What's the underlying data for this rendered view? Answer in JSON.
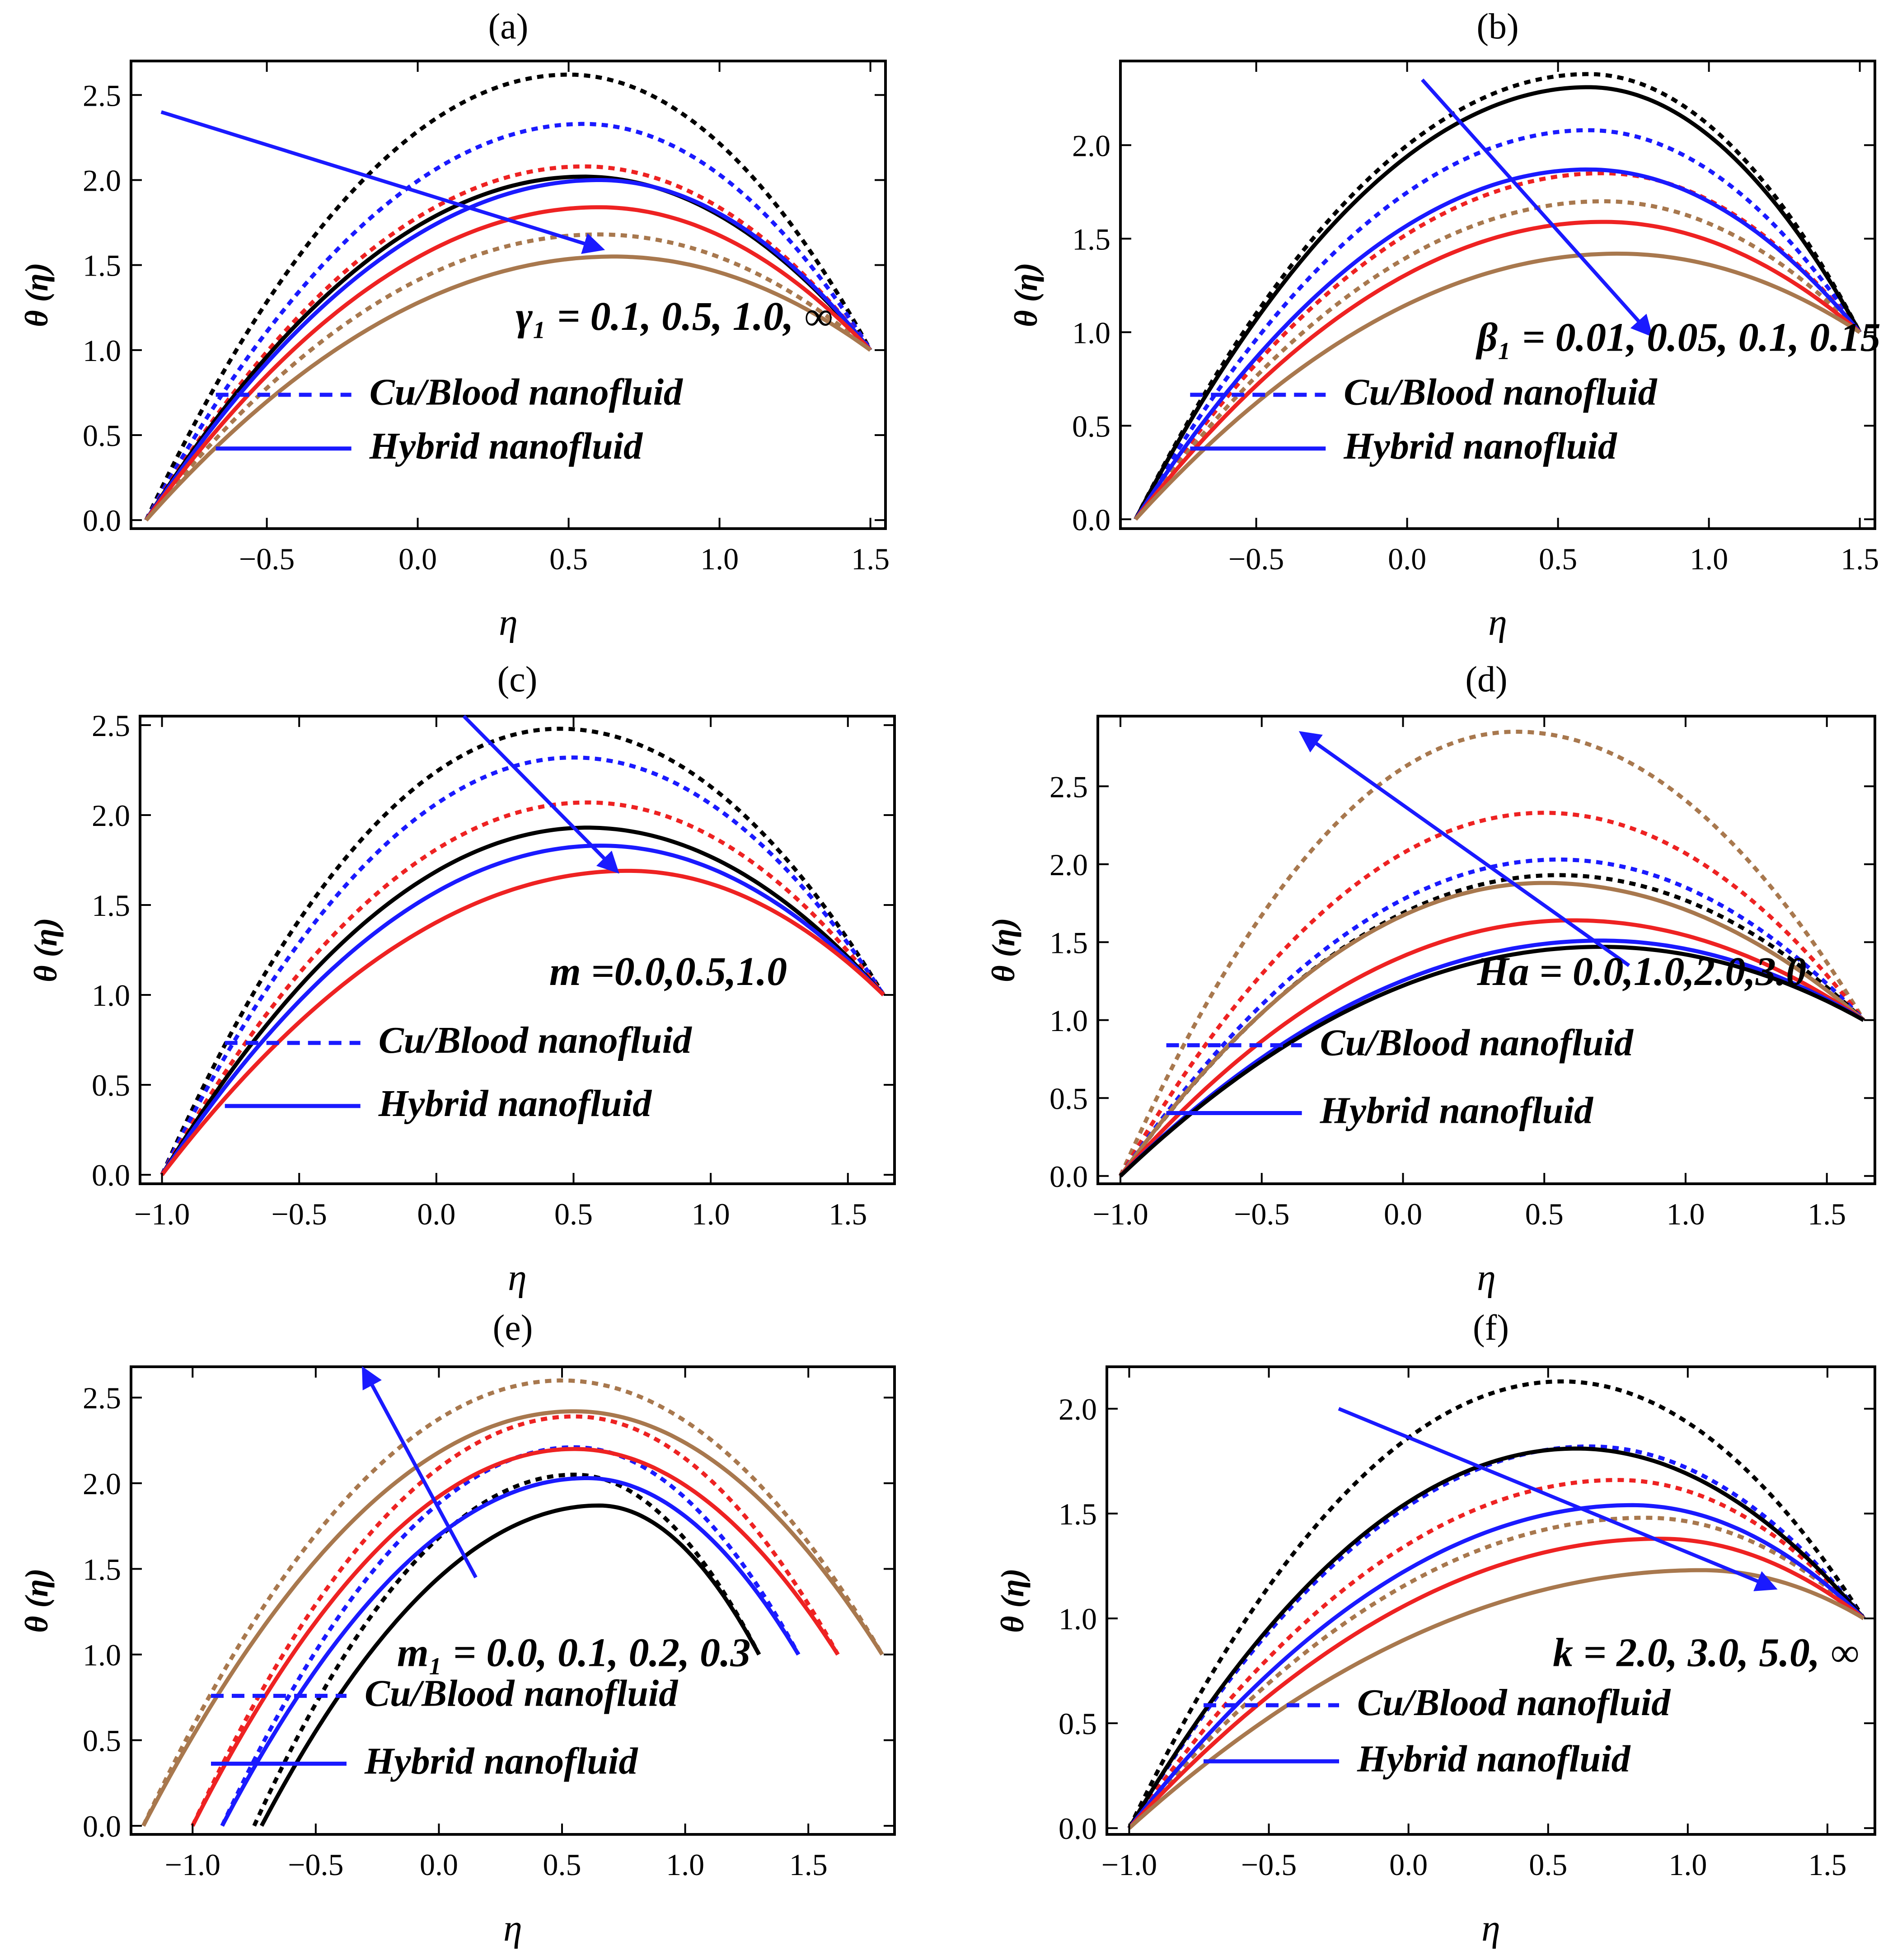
{
  "figure": {
    "colors": {
      "black": "#000000",
      "blue": "#1a1aff",
      "red": "#ee2222",
      "brown": "#a8784e",
      "arrow": "#1a1aff"
    },
    "legend_entries": [
      "Cu/Blood nanofluid",
      "Hybrid nanofluid"
    ]
  },
  "chart_data": [
    {
      "panel": "(a)",
      "type": "line",
      "xlabel": "η",
      "ylabel": "θ (η)",
      "xlim": [
        -0.95,
        1.55
      ],
      "ylim": [
        -0.05,
        2.7
      ],
      "xticks": [
        "−0.5",
        "0.0",
        "0.5",
        "1.0",
        "1.5"
      ],
      "xtick_values": [
        -0.5,
        0.0,
        0.5,
        1.0,
        1.5
      ],
      "yticks": [
        "0.0",
        "0.5",
        "1.0",
        "1.5",
        "2.0",
        "2.5"
      ],
      "ytick_values": [
        0.0,
        0.5,
        1.0,
        1.5,
        2.0,
        2.5
      ],
      "annotation": "γ₁ = 0.1, 0.5, 1.0, ∞",
      "arrow": {
        "from": [
          -0.85,
          2.4
        ],
        "to": [
          0.6,
          1.6
        ]
      },
      "legend": [
        "Cu/Blood nanofluid",
        "Hybrid nanofluid"
      ],
      "series": [
        {
          "name": "Cu/Blood nanofluid",
          "color": "black",
          "style": "dotted",
          "x_start": -0.9,
          "x_end": 1.5,
          "y_start": 0.0,
          "y_end": 1.0,
          "peak_x": 0.5,
          "peak_y": 2.62
        },
        {
          "name": "Cu/Blood nanofluid",
          "color": "blue",
          "style": "dotted",
          "x_start": -0.9,
          "x_end": 1.5,
          "y_start": 0.0,
          "y_end": 1.0,
          "peak_x": 0.55,
          "peak_y": 2.33
        },
        {
          "name": "Cu/Blood nanofluid",
          "color": "red",
          "style": "dotted",
          "x_start": -0.9,
          "x_end": 1.5,
          "y_start": 0.0,
          "y_end": 1.0,
          "peak_x": 0.55,
          "peak_y": 2.08
        },
        {
          "name": "Cu/Blood nanofluid",
          "color": "brown",
          "style": "dotted",
          "x_start": -0.9,
          "x_end": 1.5,
          "y_start": 0.0,
          "y_end": 1.0,
          "peak_x": 0.6,
          "peak_y": 1.68
        },
        {
          "name": "Hybrid nanofluid",
          "color": "black",
          "style": "solid",
          "x_start": -0.9,
          "x_end": 1.5,
          "y_start": 0.0,
          "y_end": 1.0,
          "peak_x": 0.55,
          "peak_y": 2.02
        },
        {
          "name": "Hybrid nanofluid",
          "color": "blue",
          "style": "solid",
          "x_start": -0.9,
          "x_end": 1.5,
          "y_start": 0.0,
          "y_end": 1.0,
          "peak_x": 0.6,
          "peak_y": 2.0
        },
        {
          "name": "Hybrid nanofluid",
          "color": "red",
          "style": "solid",
          "x_start": -0.9,
          "x_end": 1.5,
          "y_start": 0.0,
          "y_end": 1.0,
          "peak_x": 0.6,
          "peak_y": 1.84
        },
        {
          "name": "Hybrid nanofluid",
          "color": "brown",
          "style": "solid",
          "x_start": -0.9,
          "x_end": 1.5,
          "y_start": 0.0,
          "y_end": 1.0,
          "peak_x": 0.65,
          "peak_y": 1.55
        }
      ]
    },
    {
      "panel": "(b)",
      "type": "line",
      "xlabel": "η",
      "ylabel": "θ (η)",
      "xlim": [
        -0.95,
        1.55
      ],
      "ylim": [
        -0.05,
        2.45
      ],
      "xticks": [
        "−0.5",
        "0.0",
        "0.5",
        "1.0",
        "1.5"
      ],
      "xtick_values": [
        -0.5,
        0.0,
        0.5,
        1.0,
        1.5
      ],
      "yticks": [
        "0.0",
        "0.5",
        "1.0",
        "1.5",
        "2.0"
      ],
      "ytick_values": [
        0.0,
        0.5,
        1.0,
        1.5,
        2.0
      ],
      "annotation": "β₁ = 0.01, 0.05, 0.1, 0.15",
      "arrow": {
        "from": [
          0.05,
          2.35
        ],
        "to": [
          0.8,
          1.0
        ]
      },
      "legend": [
        "Cu/Blood nanofluid",
        "Hybrid nanofluid"
      ],
      "series": [
        {
          "name": "Cu/Blood nanofluid",
          "color": "black",
          "style": "dotted",
          "x_start": -0.9,
          "x_end": 1.5,
          "y_start": 0.0,
          "y_end": 1.0,
          "peak_x": 0.6,
          "peak_y": 2.38
        },
        {
          "name": "Cu/Blood nanofluid",
          "color": "blue",
          "style": "dotted",
          "x_start": -0.9,
          "x_end": 1.5,
          "y_start": 0.0,
          "y_end": 1.0,
          "peak_x": 0.6,
          "peak_y": 2.08
        },
        {
          "name": "Cu/Blood nanofluid",
          "color": "red",
          "style": "dotted",
          "x_start": -0.9,
          "x_end": 1.5,
          "y_start": 0.0,
          "y_end": 1.0,
          "peak_x": 0.65,
          "peak_y": 1.85
        },
        {
          "name": "Cu/Blood nanofluid",
          "color": "brown",
          "style": "dotted",
          "x_start": -0.9,
          "x_end": 1.5,
          "y_start": 0.0,
          "y_end": 1.0,
          "peak_x": 0.65,
          "peak_y": 1.7
        },
        {
          "name": "Hybrid nanofluid",
          "color": "black",
          "style": "solid",
          "x_start": -0.9,
          "x_end": 1.5,
          "y_start": 0.0,
          "y_end": 1.0,
          "peak_x": 0.6,
          "peak_y": 2.31
        },
        {
          "name": "Hybrid nanofluid",
          "color": "blue",
          "style": "solid",
          "x_start": -0.9,
          "x_end": 1.5,
          "y_start": 0.0,
          "y_end": 1.0,
          "peak_x": 0.6,
          "peak_y": 1.87
        },
        {
          "name": "Hybrid nanofluid",
          "color": "red",
          "style": "solid",
          "x_start": -0.9,
          "x_end": 1.5,
          "y_start": 0.0,
          "y_end": 1.0,
          "peak_x": 0.65,
          "peak_y": 1.59
        },
        {
          "name": "Hybrid nanofluid",
          "color": "brown",
          "style": "solid",
          "x_start": -0.9,
          "x_end": 1.5,
          "y_start": 0.0,
          "y_end": 1.0,
          "peak_x": 0.7,
          "peak_y": 1.42
        }
      ]
    },
    {
      "panel": "(c)",
      "type": "line",
      "xlabel": "η",
      "ylabel": "θ (η)",
      "xlim": [
        -1.08,
        1.67
      ],
      "ylim": [
        -0.05,
        2.55
      ],
      "xticks": [
        "−1.0",
        "−0.5",
        "0.0",
        "0.5",
        "1.0",
        "1.5"
      ],
      "xtick_values": [
        -1.0,
        -0.5,
        0.0,
        0.5,
        1.0,
        1.5
      ],
      "yticks": [
        "0.0",
        "0.5",
        "1.0",
        "1.5",
        "2.0",
        "2.5"
      ],
      "ytick_values": [
        0.0,
        0.5,
        1.0,
        1.5,
        2.0,
        2.5
      ],
      "annotation": "m =0.0,0.5,1.0",
      "arrow": {
        "from": [
          0.1,
          2.55
        ],
        "to": [
          0.65,
          1.7
        ]
      },
      "legend": [
        "Cu/Blood nanofluid",
        "Hybrid nanofluid"
      ],
      "series": [
        {
          "name": "Cu/Blood nanofluid",
          "color": "black",
          "style": "dotted",
          "x_start": -1.0,
          "x_end": 1.63,
          "y_start": 0.0,
          "y_end": 1.0,
          "peak_x": 0.45,
          "peak_y": 2.48
        },
        {
          "name": "Cu/Blood nanofluid",
          "color": "blue",
          "style": "dotted",
          "x_start": -1.0,
          "x_end": 1.63,
          "y_start": 0.0,
          "y_end": 1.0,
          "peak_x": 0.5,
          "peak_y": 2.32
        },
        {
          "name": "Cu/Blood nanofluid",
          "color": "red",
          "style": "dotted",
          "x_start": -1.0,
          "x_end": 1.63,
          "y_start": 0.0,
          "y_end": 1.0,
          "peak_x": 0.55,
          "peak_y": 2.07
        },
        {
          "name": "Hybrid nanofluid",
          "color": "black",
          "style": "solid",
          "x_start": -1.0,
          "x_end": 1.63,
          "y_start": 0.0,
          "y_end": 1.0,
          "peak_x": 0.55,
          "peak_y": 1.93
        },
        {
          "name": "Hybrid nanofluid",
          "color": "blue",
          "style": "solid",
          "x_start": -1.0,
          "x_end": 1.63,
          "y_start": 0.0,
          "y_end": 1.0,
          "peak_x": 0.6,
          "peak_y": 1.83
        },
        {
          "name": "Hybrid nanofluid",
          "color": "red",
          "style": "solid",
          "x_start": -1.0,
          "x_end": 1.63,
          "y_start": 0.0,
          "y_end": 1.0,
          "peak_x": 0.7,
          "peak_y": 1.69
        }
      ]
    },
    {
      "panel": "(d)",
      "type": "line",
      "xlabel": "η",
      "ylabel": "θ (η)",
      "xlim": [
        -1.08,
        1.67
      ],
      "ylim": [
        -0.05,
        2.95
      ],
      "xticks": [
        "−1.0",
        "−0.5",
        "0.0",
        "0.5",
        "1.0",
        "1.5"
      ],
      "xtick_values": [
        -1.0,
        -0.5,
        0.0,
        0.5,
        1.0,
        1.5
      ],
      "yticks": [
        "0.0",
        "0.5",
        "1.0",
        "1.5",
        "2.0",
        "2.5"
      ],
      "ytick_values": [
        0.0,
        0.5,
        1.0,
        1.5,
        2.0,
        2.5
      ],
      "annotation": "Ha = 0.0,1.0,2.0,3.0",
      "arrow": {
        "from": [
          0.8,
          1.35
        ],
        "to": [
          -0.35,
          2.83
        ]
      },
      "legend": [
        "Cu/Blood nanofluid",
        "Hybrid nanofluid"
      ],
      "series": [
        {
          "name": "Cu/Blood nanofluid",
          "color": "brown",
          "style": "dotted",
          "x_start": -1.0,
          "x_end": 1.63,
          "y_start": 0.0,
          "y_end": 1.0,
          "peak_x": 0.4,
          "peak_y": 2.85
        },
        {
          "name": "Cu/Blood nanofluid",
          "color": "red",
          "style": "dotted",
          "x_start": -1.0,
          "x_end": 1.63,
          "y_start": 0.0,
          "y_end": 1.0,
          "peak_x": 0.5,
          "peak_y": 2.33
        },
        {
          "name": "Cu/Blood nanofluid",
          "color": "blue",
          "style": "dotted",
          "x_start": -1.0,
          "x_end": 1.63,
          "y_start": 0.0,
          "y_end": 1.0,
          "peak_x": 0.55,
          "peak_y": 2.03
        },
        {
          "name": "Cu/Blood nanofluid",
          "color": "black",
          "style": "dotted",
          "x_start": -1.0,
          "x_end": 1.63,
          "y_start": 0.0,
          "y_end": 1.0,
          "peak_x": 0.55,
          "peak_y": 1.93
        },
        {
          "name": "Hybrid nanofluid",
          "color": "brown",
          "style": "solid",
          "x_start": -1.0,
          "x_end": 1.63,
          "y_start": 0.0,
          "y_end": 1.0,
          "peak_x": 0.5,
          "peak_y": 1.88
        },
        {
          "name": "Hybrid nanofluid",
          "color": "red",
          "style": "solid",
          "x_start": -1.0,
          "x_end": 1.63,
          "y_start": 0.0,
          "y_end": 1.0,
          "peak_x": 0.6,
          "peak_y": 1.64
        },
        {
          "name": "Hybrid nanofluid",
          "color": "blue",
          "style": "solid",
          "x_start": -1.0,
          "x_end": 1.63,
          "y_start": 0.0,
          "y_end": 1.0,
          "peak_x": 0.7,
          "peak_y": 1.51
        },
        {
          "name": "Hybrid nanofluid",
          "color": "black",
          "style": "solid",
          "x_start": -1.0,
          "x_end": 1.63,
          "y_start": 0.0,
          "y_end": 1.0,
          "peak_x": 0.7,
          "peak_y": 1.47
        }
      ]
    },
    {
      "panel": "(e)",
      "type": "line",
      "xlabel": "η",
      "ylabel": "θ (η)",
      "xlim": [
        -1.25,
        1.85
      ],
      "ylim": [
        -0.05,
        2.68
      ],
      "xticks": [
        "−1.0",
        "−0.5",
        "0.0",
        "0.5",
        "1.0",
        "1.5"
      ],
      "xtick_values": [
        -1.0,
        -0.5,
        0.0,
        0.5,
        1.0,
        1.5
      ],
      "yticks": [
        "0.0",
        "0.5",
        "1.0",
        "1.5",
        "2.0",
        "2.5"
      ],
      "ytick_values": [
        0.0,
        0.5,
        1.0,
        1.5,
        2.0,
        2.5
      ],
      "annotation": "m₁ = 0.0, 0.1, 0.2, 0.3",
      "arrow": {
        "from": [
          0.15,
          1.45
        ],
        "to": [
          -0.3,
          2.65
        ]
      },
      "legend": [
        "Cu/Blood nanofluid",
        "Hybrid nanofluid"
      ],
      "series": [
        {
          "name": "Cu/Blood nanofluid",
          "color": "brown",
          "style": "dotted",
          "x_start": -1.2,
          "x_end": 1.8,
          "y_start": 0.0,
          "y_end": 1.0,
          "peak_x": 0.5,
          "peak_y": 2.6
        },
        {
          "name": "Cu/Blood nanofluid",
          "color": "red",
          "style": "dotted",
          "x_start": -1.0,
          "x_end": 1.62,
          "y_start": 0.0,
          "y_end": 1.0,
          "peak_x": 0.55,
          "peak_y": 2.39
        },
        {
          "name": "Cu/Blood nanofluid",
          "color": "blue",
          "style": "dotted",
          "x_start": -0.88,
          "x_end": 1.46,
          "y_start": 0.0,
          "y_end": 1.0,
          "peak_x": 0.55,
          "peak_y": 2.21
        },
        {
          "name": "Cu/Blood nanofluid",
          "color": "black",
          "style": "dotted",
          "x_start": -0.75,
          "x_end": 1.3,
          "y_start": 0.0,
          "y_end": 1.0,
          "peak_x": 0.55,
          "peak_y": 2.05
        },
        {
          "name": "Hybrid nanofluid",
          "color": "brown",
          "style": "solid",
          "x_start": -1.2,
          "x_end": 1.8,
          "y_start": 0.0,
          "y_end": 1.0,
          "peak_x": 0.55,
          "peak_y": 2.42
        },
        {
          "name": "Hybrid nanofluid",
          "color": "red",
          "style": "solid",
          "x_start": -1.0,
          "x_end": 1.62,
          "y_start": 0.0,
          "y_end": 1.0,
          "peak_x": 0.55,
          "peak_y": 2.2
        },
        {
          "name": "Hybrid nanofluid",
          "color": "blue",
          "style": "solid",
          "x_start": -0.88,
          "x_end": 1.46,
          "y_start": 0.0,
          "y_end": 1.0,
          "peak_x": 0.6,
          "peak_y": 2.03
        },
        {
          "name": "Hybrid nanofluid",
          "color": "black",
          "style": "solid",
          "x_start": -0.72,
          "x_end": 1.3,
          "y_start": 0.0,
          "y_end": 1.0,
          "peak_x": 0.65,
          "peak_y": 1.87
        }
      ]
    },
    {
      "panel": "(f)",
      "type": "line",
      "xlabel": "η",
      "ylabel": "θ (η)",
      "xlim": [
        -1.08,
        1.67
      ],
      "ylim": [
        -0.03,
        2.2
      ],
      "xticks": [
        "−1.0",
        "−0.5",
        "0.0",
        "0.5",
        "1.0",
        "1.5"
      ],
      "xtick_values": [
        -1.0,
        -0.5,
        0.0,
        0.5,
        1.0,
        1.5
      ],
      "yticks": [
        "0.0",
        "0.5",
        "1.0",
        "1.5",
        "2.0"
      ],
      "ytick_values": [
        0.0,
        0.5,
        1.0,
        1.5,
        2.0
      ],
      "annotation": "k = 2.0, 3.0, 5.0, ∞",
      "arrow": {
        "from": [
          -0.25,
          2.0
        ],
        "to": [
          1.3,
          1.15
        ]
      },
      "legend": [
        "Cu/Blood nanofluid",
        "Hybrid nanofluid"
      ],
      "series": [
        {
          "name": "Cu/Blood nanofluid",
          "color": "black",
          "style": "dotted",
          "x_start": -1.0,
          "x_end": 1.63,
          "y_start": 0.0,
          "y_end": 1.0,
          "peak_x": 0.55,
          "peak_y": 2.13
        },
        {
          "name": "Cu/Blood nanofluid",
          "color": "blue",
          "style": "dotted",
          "x_start": -1.0,
          "x_end": 1.63,
          "y_start": 0.0,
          "y_end": 1.0,
          "peak_x": 0.65,
          "peak_y": 1.82
        },
        {
          "name": "Cu/Blood nanofluid",
          "color": "red",
          "style": "dotted",
          "x_start": -1.0,
          "x_end": 1.63,
          "y_start": 0.0,
          "y_end": 1.0,
          "peak_x": 0.75,
          "peak_y": 1.66
        },
        {
          "name": "Cu/Blood nanofluid",
          "color": "brown",
          "style": "dotted",
          "x_start": -1.0,
          "x_end": 1.63,
          "y_start": 0.0,
          "y_end": 1.0,
          "peak_x": 0.85,
          "peak_y": 1.48
        },
        {
          "name": "Hybrid nanofluid",
          "color": "black",
          "style": "solid",
          "x_start": -1.0,
          "x_end": 1.63,
          "y_start": 0.0,
          "y_end": 1.0,
          "peak_x": 0.6,
          "peak_y": 1.81
        },
        {
          "name": "Hybrid nanofluid",
          "color": "blue",
          "style": "solid",
          "x_start": -1.0,
          "x_end": 1.63,
          "y_start": 0.0,
          "y_end": 1.0,
          "peak_x": 0.8,
          "peak_y": 1.54
        },
        {
          "name": "Hybrid nanofluid",
          "color": "red",
          "style": "solid",
          "x_start": -1.0,
          "x_end": 1.63,
          "y_start": 0.0,
          "y_end": 1.0,
          "peak_x": 0.9,
          "peak_y": 1.38
        },
        {
          "name": "Hybrid nanofluid",
          "color": "brown",
          "style": "solid",
          "x_start": -1.0,
          "x_end": 1.63,
          "y_start": 0.0,
          "y_end": 1.0,
          "peak_x": 1.05,
          "peak_y": 1.23
        }
      ]
    }
  ]
}
